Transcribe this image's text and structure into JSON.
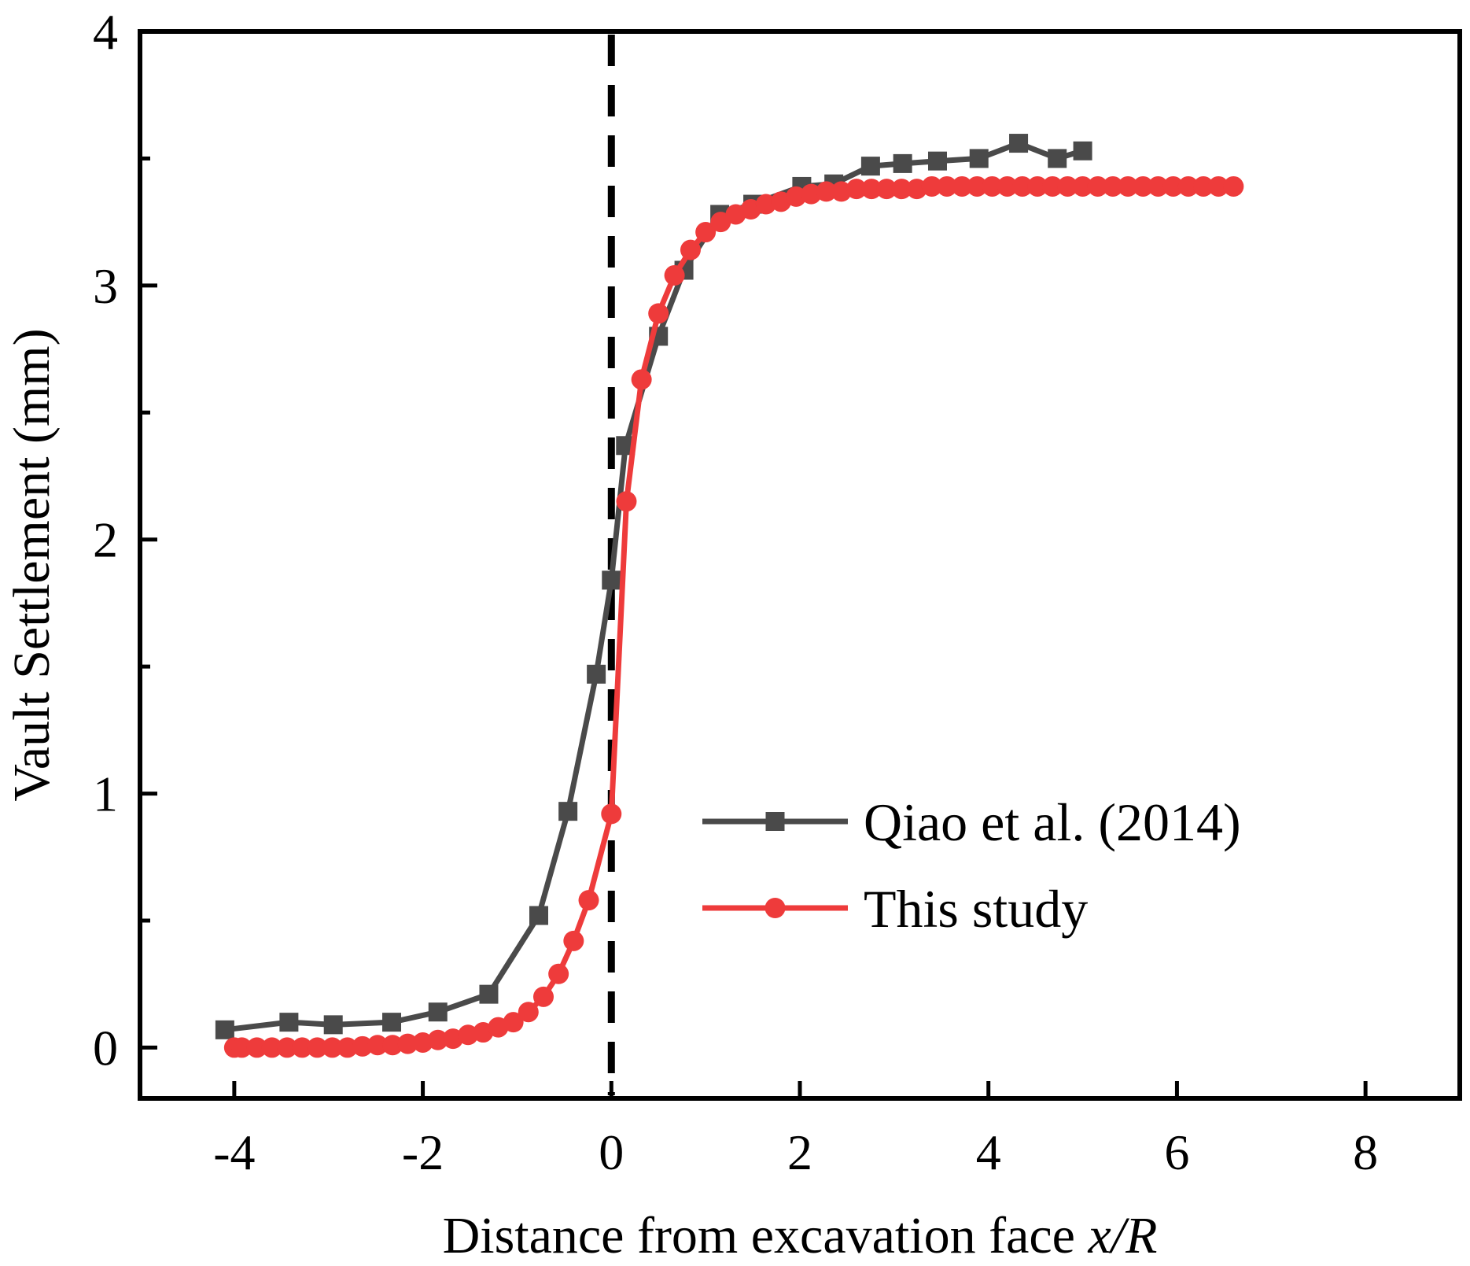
{
  "chart_data": {
    "type": "line",
    "title": "",
    "xlabel": "Distance from excavation face ",
    "xlabel_italic": "x/R",
    "ylabel": "Vault Settlement (mm)",
    "xlim": [
      -5,
      9
    ],
    "ylim": [
      -0.2,
      4
    ],
    "x_ticks": [
      -4,
      -2,
      0,
      2,
      4,
      6,
      8
    ],
    "x_tick_labels": [
      "-4",
      "-2",
      "0",
      "2",
      "4",
      "6",
      "8"
    ],
    "y_ticks": [
      0,
      1,
      2,
      3,
      4
    ],
    "y_tick_labels": [
      "0",
      "1",
      "2",
      "3",
      "4"
    ],
    "y_minor_ticks": [
      0.5,
      1.5,
      2.5,
      3.5
    ],
    "grid": false,
    "legend_position": "bottom-right",
    "reference_line": {
      "x": 0,
      "style": "dashed",
      "color": "#000000"
    },
    "series": [
      {
        "name": "Qiao et al. (2014)",
        "color": "#4a4a4a",
        "marker": "square",
        "x": [
          -4.1,
          -3.42,
          -2.95,
          -2.33,
          -1.84,
          -1.3,
          -0.77,
          -0.46,
          -0.16,
          0,
          0.15,
          0.5,
          0.77,
          1.15,
          1.5,
          2.02,
          2.36,
          2.75,
          3.09,
          3.46,
          3.9,
          4.32,
          4.73,
          5.0
        ],
        "y": [
          0.07,
          0.1,
          0.09,
          0.1,
          0.14,
          0.21,
          0.52,
          0.93,
          1.47,
          1.84,
          2.37,
          2.8,
          3.06,
          3.28,
          3.32,
          3.39,
          3.4,
          3.47,
          3.48,
          3.49,
          3.5,
          3.56,
          3.5,
          3.53
        ]
      },
      {
        "name": "This study",
        "color": "#ee3b3b",
        "marker": "circle",
        "x": [
          -4.0,
          -3.92,
          -3.76,
          -3.6,
          -3.44,
          -3.28,
          -3.12,
          -2.96,
          -2.8,
          -2.64,
          -2.48,
          -2.32,
          -2.16,
          -2.0,
          -1.84,
          -1.68,
          -1.52,
          -1.36,
          -1.2,
          -1.04,
          -0.88,
          -0.72,
          -0.56,
          -0.4,
          -0.24,
          0.0,
          0.16,
          0.32,
          0.5,
          0.67,
          0.84,
          1.0,
          1.16,
          1.32,
          1.48,
          1.64,
          1.8,
          1.96,
          2.12,
          2.28,
          2.44,
          2.6,
          2.76,
          2.92,
          3.08,
          3.24,
          3.4,
          3.56,
          3.72,
          3.88,
          4.04,
          4.2,
          4.36,
          4.52,
          4.68,
          4.84,
          5.0,
          5.16,
          5.32,
          5.48,
          5.64,
          5.8,
          5.96,
          6.12,
          6.28,
          6.44,
          6.6
        ],
        "y": [
          0.0,
          0.0,
          0.0,
          0.0,
          0.0,
          0.0,
          0.0,
          0.0,
          0.0,
          0.005,
          0.01,
          0.01,
          0.015,
          0.02,
          0.03,
          0.035,
          0.05,
          0.06,
          0.08,
          0.1,
          0.14,
          0.2,
          0.29,
          0.42,
          0.58,
          0.92,
          2.15,
          2.63,
          2.89,
          3.04,
          3.14,
          3.21,
          3.25,
          3.28,
          3.3,
          3.32,
          3.33,
          3.35,
          3.36,
          3.37,
          3.37,
          3.38,
          3.38,
          3.38,
          3.38,
          3.38,
          3.39,
          3.39,
          3.39,
          3.39,
          3.39,
          3.39,
          3.39,
          3.39,
          3.39,
          3.39,
          3.39,
          3.39,
          3.39,
          3.39,
          3.39,
          3.39,
          3.39,
          3.39,
          3.39,
          3.39,
          3.39
        ]
      }
    ]
  }
}
